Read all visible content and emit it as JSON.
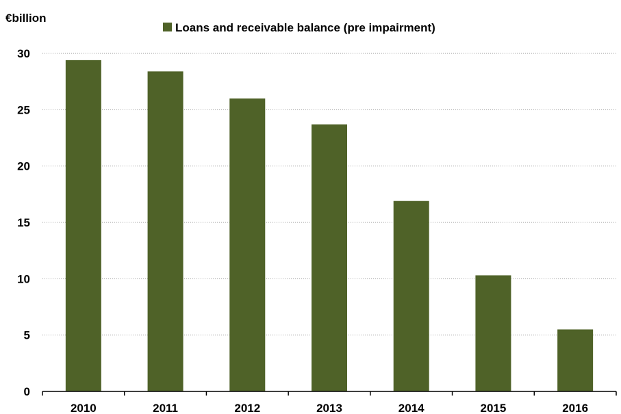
{
  "chart_data": {
    "type": "bar",
    "ylabel": "€billion",
    "categories": [
      "2010",
      "2011",
      "2012",
      "2013",
      "2014",
      "2015",
      "2016"
    ],
    "series": [
      {
        "name": "Loans and receivable balance (pre impairment)",
        "values": [
          29.4,
          28.4,
          26.0,
          23.7,
          16.9,
          10.3,
          5.5
        ]
      }
    ],
    "ylim": [
      0,
      30
    ],
    "yticks": [
      "0",
      "5",
      "10",
      "15",
      "20",
      "25",
      "30"
    ],
    "grid": true,
    "legend_position": "top-center"
  },
  "colors": {
    "bar": "#4f6228",
    "grid": "#9a9a9a",
    "axis": "#000000"
  }
}
